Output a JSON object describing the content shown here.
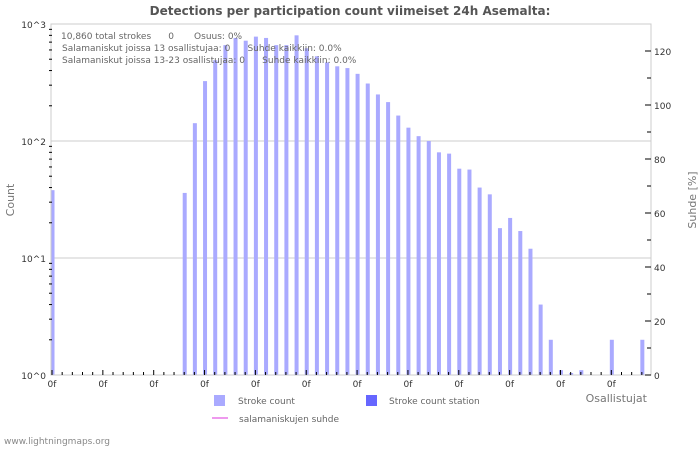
{
  "chart_data": {
    "type": "bar",
    "title": "Detections per participation count viimeiset 24h Asemalta:",
    "xlabel": "Osallistujat",
    "ylabel": "Count",
    "y2label": "Suhde [%]",
    "yscale": "log",
    "ylim": [
      1,
      1000
    ],
    "y_ticks": [
      "10^0",
      "10^1",
      "10^2",
      "10^3"
    ],
    "y2lim": [
      0,
      130
    ],
    "y2_ticks": [
      "0",
      "20",
      "40",
      "60",
      "80",
      "100",
      "120"
    ],
    "x_tick_labels": [
      "0f",
      "0f",
      "0f",
      "0f",
      "0f",
      "0f",
      "0f",
      "0f",
      "0f",
      "0f",
      "0f",
      "0f"
    ],
    "grid": true,
    "legend_position": "bottom",
    "series": [
      {
        "name": "Stroke count",
        "color": "#aaaaff",
        "x": [
          0,
          13,
          14,
          15,
          16,
          17,
          18,
          19,
          20,
          21,
          22,
          23,
          24,
          25,
          26,
          27,
          28,
          29,
          30,
          31,
          32,
          33,
          34,
          35,
          36,
          37,
          38,
          39,
          40,
          41,
          42,
          43,
          44,
          45,
          46,
          47,
          48,
          49,
          50,
          51,
          52,
          55,
          58
        ],
        "values": [
          38,
          36,
          142,
          325,
          490,
          660,
          760,
          720,
          780,
          760,
          660,
          660,
          800,
          620,
          530,
          470,
          435,
          420,
          375,
          310,
          250,
          215,
          165,
          130,
          110,
          100,
          80,
          78,
          58,
          57,
          40,
          35,
          18,
          22,
          17,
          12,
          4,
          2,
          1.1,
          1,
          1.1,
          2,
          2
        ]
      },
      {
        "name": "Stroke count station",
        "color": "#6666ff",
        "values": []
      },
      {
        "name": "salamaniskujen suhde",
        "color": "#ee99ee",
        "type": "line",
        "values": []
      }
    ],
    "annotations": [
      "10,860 total strokes      0       Osuus: 0%",
      "Salamaniskut joissa 13 osallistujaa: 0      Suhde kaikkiin: 0.0%",
      "Salamaniskut joissa 13-23 osallistujaa: 0      Suhde kaikkiin: 0.0%"
    ]
  },
  "info": {
    "line1": "10,860 total strokes      0       Osuus: 0%",
    "line2": "Salamaniskut joissa 13 osallistujaa: 0      Suhde kaikkiin: 0.0%",
    "line3": "Salamaniskut joissa 13-23 osallistujaa: 0      Suhde kaikkiin: 0.0%"
  },
  "legend": {
    "stroke_count": "Stroke count",
    "stroke_count_station": "Stroke count station",
    "ratio": "salamaniskujen suhde"
  },
  "footer": "www.lightningmaps.org"
}
